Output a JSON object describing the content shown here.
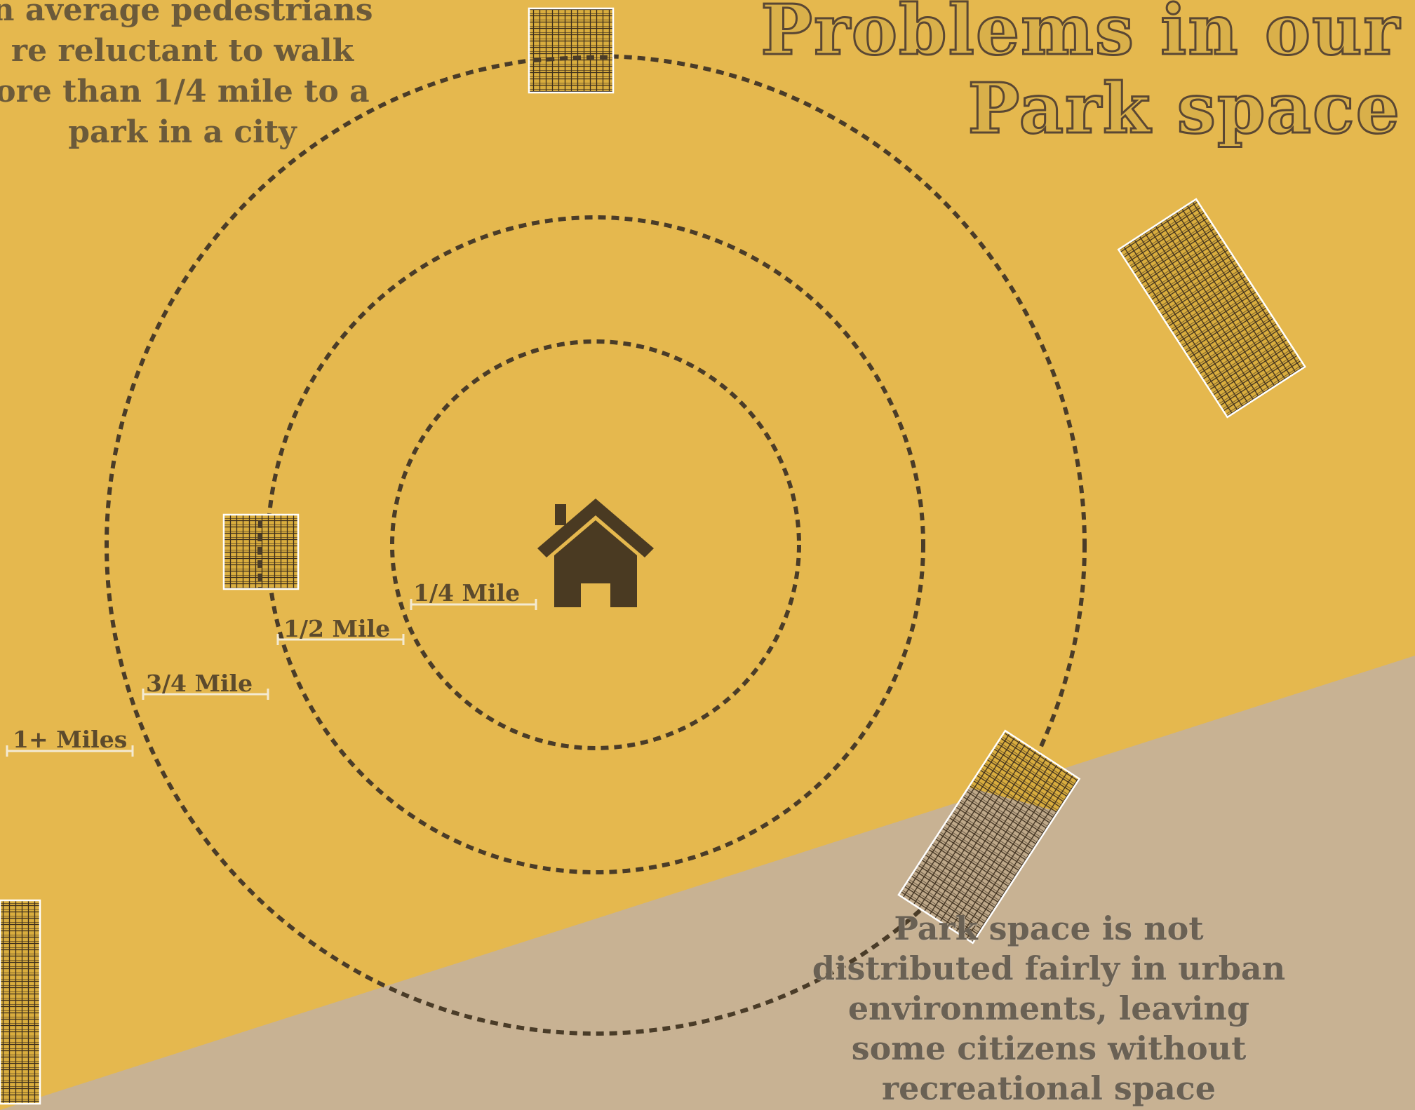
{
  "title": {
    "line1": "Problems in our",
    "line2": "Park space"
  },
  "intro": {
    "line1": "n average pedestrians",
    "line2": "re reluctant to walk",
    "line3": "ore than 1/4 mile to a",
    "line4": "park in a city"
  },
  "note": {
    "line1": "Park space is not",
    "line2": "distributed fairly in urban",
    "line3": "environments, leaving",
    "line4": "some citizens without",
    "line5": "recreational space"
  },
  "rings": [
    {
      "label": "1/4 Mile"
    },
    {
      "label": "1/2 Mile"
    },
    {
      "label": "3/4 Mile"
    },
    {
      "label": "1+ Miles"
    }
  ],
  "center_icon": "house-icon",
  "colors": {
    "background": "#e5b84e",
    "ground": "#c8b293",
    "ink": "#4a3c28",
    "park_fill": "#d9ad3e",
    "scale_bar": "#f4ead2"
  }
}
